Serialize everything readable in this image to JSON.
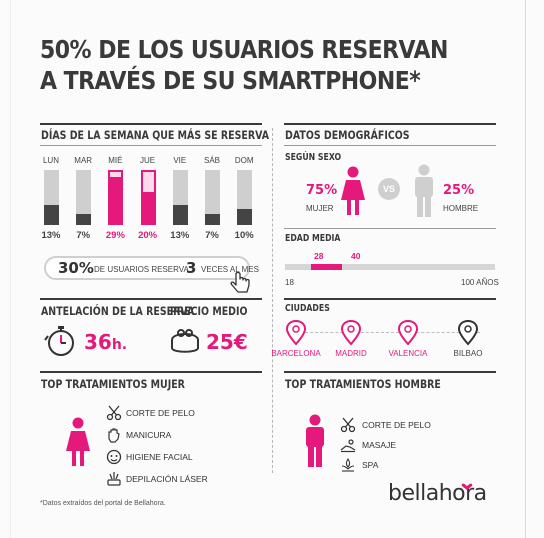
{
  "title": [
    "50% DE LOS USUARIOS RESERVAN",
    "A TRAVÉS DE SU SMARTPHONE*"
  ],
  "days_section": {
    "heading": "DÍAS DE LA SEMANA QUE MÁS SE RESERVA",
    "days": [
      {
        "label": "LUN",
        "pct_label": "13%",
        "value": 13,
        "highlight": false
      },
      {
        "label": "MAR",
        "pct_label": "7%",
        "value": 7,
        "highlight": false
      },
      {
        "label": "MIÉ",
        "pct_label": "29%",
        "value": 29,
        "highlight": true
      },
      {
        "label": "JUE",
        "pct_label": "20%",
        "value": 20,
        "highlight": true
      },
      {
        "label": "VIE",
        "pct_label": "13%",
        "value": 13,
        "highlight": false
      },
      {
        "label": "SÁB",
        "pct_label": "7%",
        "value": 7,
        "highlight": false
      },
      {
        "label": "DOM",
        "pct_label": "10%",
        "value": 10,
        "highlight": false
      }
    ]
  },
  "frequency": {
    "big1": "30%",
    "text1": "DE USUARIOS RESERVA",
    "big2": "3",
    "text2": "VECES AL MES"
  },
  "advance": {
    "heading": "ANTELACIÓN DE LA RESERVA",
    "value": "36",
    "unit": "h."
  },
  "price": {
    "heading": "PRECIO MEDIO",
    "value": "25€"
  },
  "demographics": {
    "heading": "DATOS DEMOGRÁFICOS",
    "sex_heading": "SEGÚN SEXO",
    "female_pct": "75%",
    "female_label": "MUJER",
    "vs": "VS",
    "male_pct": "25%",
    "male_label": "HOMBRE",
    "age_heading": "EDAD MEDIA",
    "age_from": "28",
    "age_to": "40",
    "age_min": "18",
    "age_max": "100 AÑOS"
  },
  "cities": {
    "heading": "CIUDADES",
    "items": [
      "BARCELONA",
      "MADRID",
      "VALENCIA",
      "BILBAO"
    ]
  },
  "treat_women": {
    "heading": "TOP TRATAMIENTOS MUJER",
    "items": [
      "CORTE DE PELO",
      "MANICURA",
      "HIGIENE FACIAL",
      "DEPILACIÓN LÁSER"
    ]
  },
  "treat_men": {
    "heading": "TOP TRATAMIENTOS HOMBRE",
    "items": [
      "CORTE DE PELO",
      "MASAJE",
      "SPA"
    ]
  },
  "footnote": "*Datos extraídos del portal de Bellahora.",
  "logo": "bellahora",
  "colors": {
    "accent": "#e4197b",
    "dark": "#3a3a3a",
    "gray": "#cfcfcf"
  },
  "icons": [
    "stopwatch-icon",
    "purse-icon",
    "female-icon",
    "male-icon",
    "map-pin-icon",
    "scissors-icon",
    "hand-icon",
    "face-icon",
    "laser-icon",
    "massage-icon",
    "spa-icon",
    "cursor-hand-icon"
  ]
}
